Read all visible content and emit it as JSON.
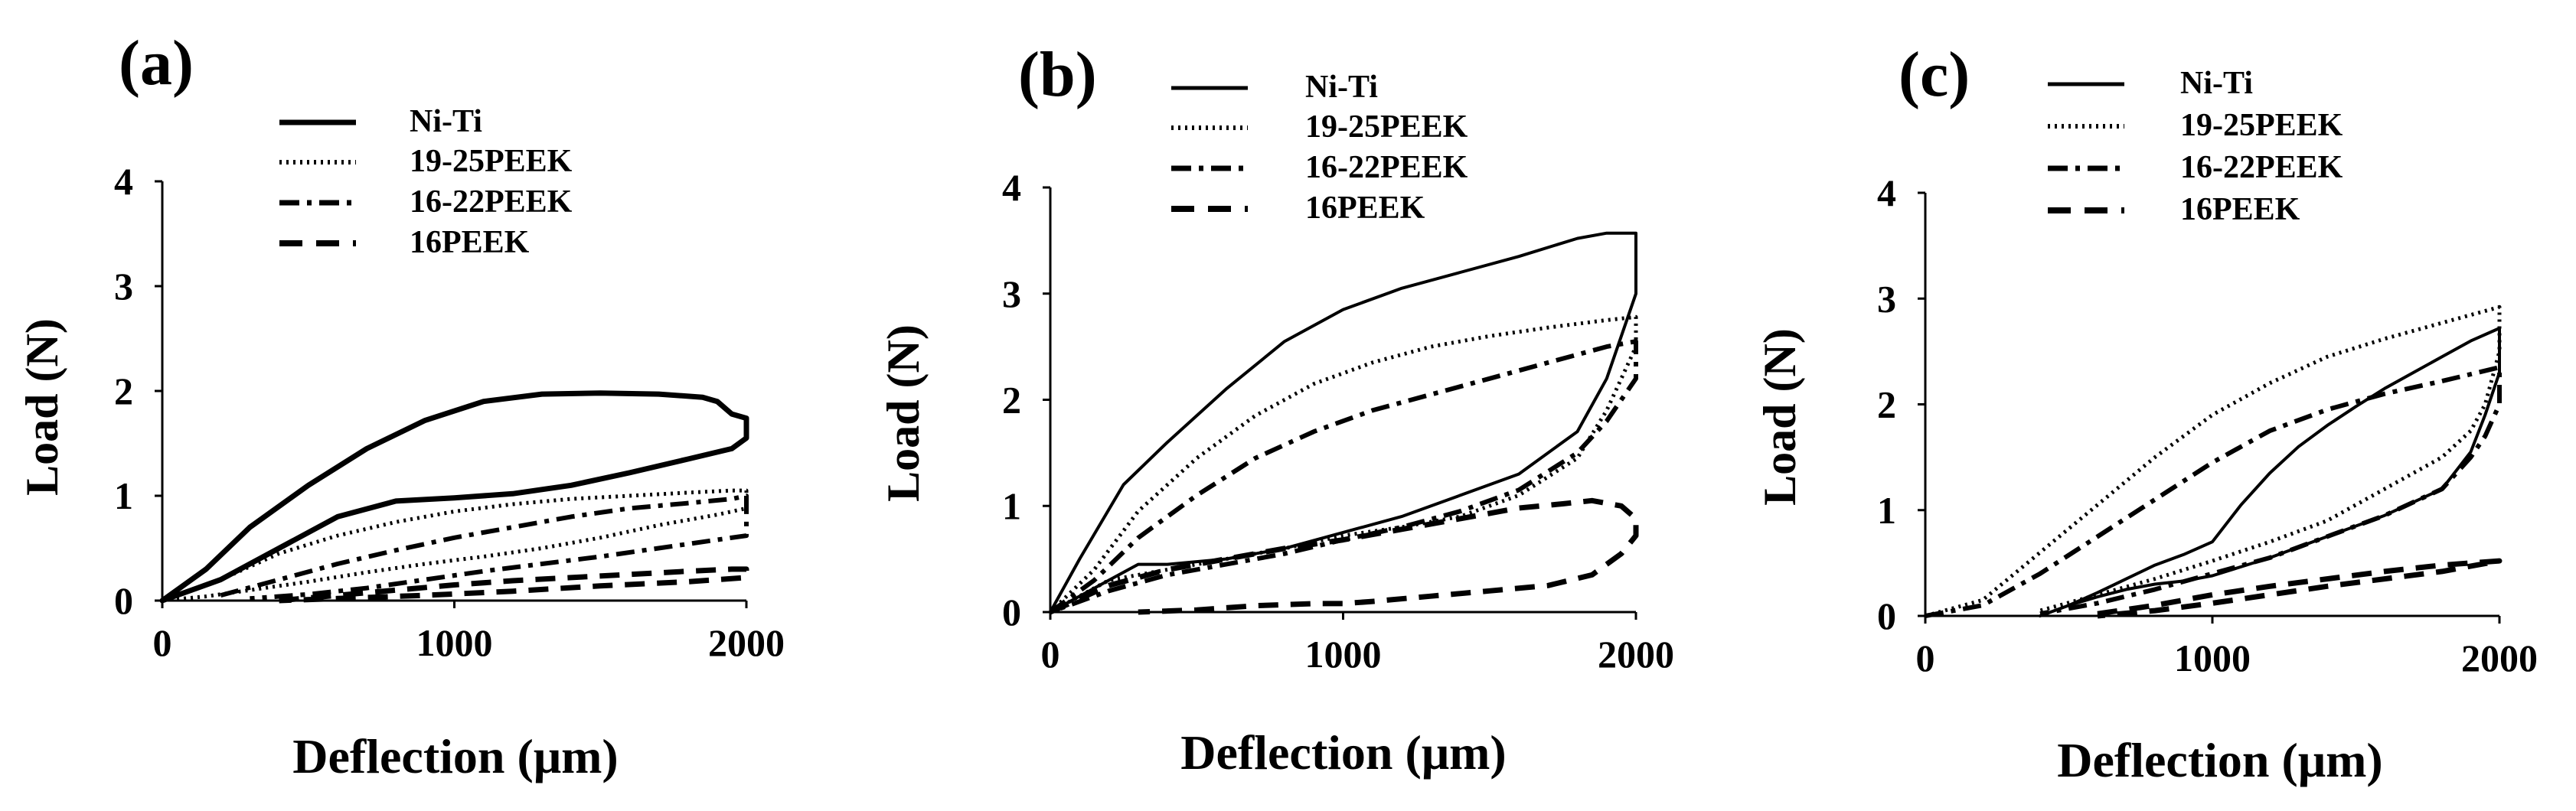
{
  "figure": {
    "description_free": true
  },
  "chart_data": [
    {
      "type": "line",
      "panel_label": "(a)",
      "xlabel": "Deflection   (μm)",
      "ylabel": "Load (N)",
      "xlim": [
        0,
        2000
      ],
      "ylim": [
        0,
        4
      ],
      "xticks": [
        "0",
        "1000",
        "2000"
      ],
      "yticks": [
        "0",
        "1",
        "2",
        "3",
        "4"
      ],
      "legend": [
        "Ni-Ti",
        "19-25PEEK",
        "16-22PEEK",
        "16PEEK"
      ],
      "series": [
        {
          "name": "Ni-Ti",
          "style": "solid-thick",
          "x": [
            0,
            150,
            300,
            500,
            700,
            900,
            1100,
            1300,
            1500,
            1700,
            1850,
            1900,
            1950,
            2000,
            2000,
            1950,
            1800,
            1600,
            1400,
            1200,
            1000,
            800,
            600,
            400,
            200,
            0
          ],
          "y": [
            0,
            0.3,
            0.7,
            1.1,
            1.45,
            1.72,
            1.9,
            1.97,
            1.98,
            1.97,
            1.94,
            1.9,
            1.78,
            1.74,
            1.55,
            1.45,
            1.35,
            1.22,
            1.1,
            1.02,
            0.98,
            0.95,
            0.8,
            0.5,
            0.2,
            0
          ]
        },
        {
          "name": "19-25PEEK",
          "style": "dotted",
          "x": [
            0,
            200,
            400,
            600,
            800,
            1000,
            1200,
            1400,
            1600,
            1800,
            1950,
            2000,
            2000,
            1900,
            1700,
            1500,
            1300,
            1100,
            900,
            700,
            500,
            300,
            150,
            0
          ],
          "y": [
            0,
            0.2,
            0.45,
            0.62,
            0.75,
            0.85,
            0.92,
            0.97,
            1.0,
            1.03,
            1.05,
            1.05,
            0.88,
            0.82,
            0.72,
            0.6,
            0.5,
            0.42,
            0.35,
            0.27,
            0.18,
            0.1,
            0.04,
            0
          ]
        },
        {
          "name": "16-22PEEK",
          "style": "dash-dot",
          "x": [
            200,
            400,
            600,
            800,
            1000,
            1200,
            1400,
            1600,
            1800,
            1950,
            2000,
            2000,
            1900,
            1700,
            1500,
            1300,
            1100,
            900,
            700,
            500,
            300
          ],
          "y": [
            0.05,
            0.2,
            0.35,
            0.48,
            0.6,
            0.7,
            0.8,
            0.88,
            0.93,
            0.97,
            1.0,
            0.62,
            0.58,
            0.5,
            0.42,
            0.35,
            0.28,
            0.2,
            0.12,
            0.06,
            0.02
          ]
        },
        {
          "name": "16PEEK",
          "style": "dashed",
          "x": [
            400,
            600,
            800,
            1000,
            1200,
            1400,
            1600,
            1800,
            1950,
            2000,
            2000,
            1800,
            1500,
            1200,
            900,
            600,
            400
          ],
          "y": [
            0.0,
            0.05,
            0.1,
            0.15,
            0.19,
            0.22,
            0.25,
            0.28,
            0.3,
            0.3,
            0.22,
            0.18,
            0.14,
            0.09,
            0.05,
            0.02,
            0.0
          ]
        }
      ]
    },
    {
      "type": "line",
      "panel_label": "(b)",
      "xlabel": "Deflection (μm)",
      "ylabel": "Load (N)",
      "xlim": [
        0,
        2000
      ],
      "ylim": [
        0,
        4
      ],
      "xticks": [
        "0",
        "1000",
        "2000"
      ],
      "yticks": [
        "0",
        "1",
        "2",
        "3",
        "4"
      ],
      "legend": [
        "Ni-Ti",
        "19-25PEEK",
        "16-22PEEK",
        "16PEEK"
      ],
      "series": [
        {
          "name": "Ni-Ti",
          "style": "solid",
          "x": [
            0,
            100,
            250,
            400,
            600,
            800,
            1000,
            1200,
            1400,
            1600,
            1800,
            1900,
            2000,
            2000,
            1950,
            1900,
            1800,
            1600,
            1400,
            1200,
            1000,
            800,
            600,
            400,
            300,
            200,
            100,
            0
          ],
          "y": [
            0,
            0.5,
            1.2,
            1.6,
            2.1,
            2.55,
            2.85,
            3.05,
            3.2,
            3.35,
            3.52,
            3.57,
            3.57,
            3.0,
            2.6,
            2.2,
            1.7,
            1.3,
            1.1,
            0.9,
            0.75,
            0.6,
            0.5,
            0.45,
            0.45,
            0.3,
            0.15,
            0
          ]
        },
        {
          "name": "19-25PEEK",
          "style": "dotted",
          "x": [
            0,
            150,
            300,
            500,
            700,
            900,
            1100,
            1300,
            1500,
            1700,
            1900,
            2000,
            2000,
            1950,
            1900,
            1800,
            1600,
            1400,
            1200,
            1000,
            800,
            600,
            400,
            200,
            0
          ],
          "y": [
            0,
            0.4,
            0.95,
            1.45,
            1.85,
            2.15,
            2.35,
            2.5,
            2.6,
            2.68,
            2.75,
            2.78,
            2.5,
            2.2,
            1.9,
            1.45,
            1.1,
            0.9,
            0.8,
            0.72,
            0.6,
            0.5,
            0.4,
            0.3,
            0
          ]
        },
        {
          "name": "16-22PEEK",
          "style": "dash-dot",
          "x": [
            0,
            150,
            300,
            500,
            700,
            900,
            1100,
            1300,
            1500,
            1700,
            1900,
            2000,
            2000,
            1950,
            1900,
            1800,
            1600,
            1400,
            1200,
            1000,
            800,
            600,
            400,
            200,
            0
          ],
          "y": [
            0,
            0.3,
            0.7,
            1.1,
            1.45,
            1.7,
            1.9,
            2.05,
            2.2,
            2.35,
            2.5,
            2.55,
            2.2,
            2.0,
            1.8,
            1.5,
            1.15,
            0.95,
            0.8,
            0.68,
            0.55,
            0.45,
            0.35,
            0.2,
            0
          ]
        },
        {
          "name": "16PEEK",
          "style": "dashed",
          "x": [
            0,
            200,
            400,
            600,
            800,
            1000,
            1200,
            1400,
            1600,
            1750,
            1850,
            1950,
            2000,
            2000,
            1950,
            1850,
            1700,
            1500,
            1300,
            1100,
            1000,
            900,
            700,
            500,
            300
          ],
          "y": [
            0,
            0.25,
            0.4,
            0.5,
            0.6,
            0.68,
            0.78,
            0.88,
            0.98,
            1.02,
            1.05,
            1.0,
            0.88,
            0.72,
            0.55,
            0.35,
            0.25,
            0.2,
            0.15,
            0.1,
            0.08,
            0.08,
            0.06,
            0.02,
            0.0
          ]
        }
      ]
    },
    {
      "type": "line",
      "panel_label": "(c)",
      "xlabel": "Deflection (μm)",
      "ylabel": "Load (N)",
      "xlim": [
        0,
        2000
      ],
      "ylim": [
        0,
        4
      ],
      "xticks": [
        "0",
        "1000",
        "2000"
      ],
      "yticks": [
        "0",
        "1",
        "2",
        "3",
        "4"
      ],
      "legend": [
        "Ni-Ti",
        "19-25PEEK",
        "16-22PEEK",
        "16PEEK"
      ],
      "series": [
        {
          "name": "Ni-Ti",
          "style": "solid",
          "x": [
            400,
            500,
            600,
            700,
            800,
            900,
            1000,
            1100,
            1200,
            1300,
            1400,
            1500,
            1600,
            1700,
            1800,
            1900,
            2000,
            2000,
            1950,
            1900,
            1800,
            1600,
            1400,
            1200,
            1000,
            900,
            800,
            700,
            600,
            500,
            400
          ],
          "y": [
            0,
            0.1,
            0.22,
            0.35,
            0.48,
            0.58,
            0.7,
            1.05,
            1.35,
            1.6,
            1.8,
            1.98,
            2.15,
            2.3,
            2.45,
            2.6,
            2.72,
            2.3,
            1.9,
            1.55,
            1.2,
            0.95,
            0.75,
            0.55,
            0.38,
            0.33,
            0.3,
            0.25,
            0.18,
            0.1,
            0
          ]
        },
        {
          "name": "19-25PEEK",
          "style": "dotted",
          "x": [
            0,
            200,
            400,
            600,
            800,
            1000,
            1200,
            1400,
            1600,
            1800,
            2000,
            2000,
            1950,
            1900,
            1800,
            1600,
            1400,
            1200,
            1000,
            800,
            600,
            400
          ],
          "y": [
            0,
            0.15,
            0.6,
            1.05,
            1.5,
            1.9,
            2.2,
            2.45,
            2.62,
            2.77,
            2.92,
            2.5,
            2.0,
            1.75,
            1.5,
            1.2,
            0.9,
            0.7,
            0.52,
            0.35,
            0.2,
            0.05
          ]
        },
        {
          "name": "16-22PEEK",
          "style": "dash-dot",
          "x": [
            0,
            200,
            400,
            600,
            800,
            1000,
            1200,
            1400,
            1600,
            1800,
            2000,
            2000,
            1950,
            1900,
            1800,
            1600,
            1400,
            1200,
            1000,
            800,
            600,
            400
          ],
          "y": [
            0,
            0.1,
            0.4,
            0.75,
            1.1,
            1.45,
            1.75,
            1.95,
            2.1,
            2.22,
            2.35,
            2.0,
            1.7,
            1.5,
            1.2,
            0.95,
            0.75,
            0.55,
            0.4,
            0.25,
            0.12,
            0.02
          ]
        },
        {
          "name": "16PEEK",
          "style": "dashed",
          "x": [
            600,
            800,
            1000,
            1200,
            1400,
            1600,
            1800,
            2000,
            2000,
            1800,
            1600,
            1400,
            1200,
            1000,
            800,
            600
          ],
          "y": [
            0.02,
            0.1,
            0.2,
            0.28,
            0.35,
            0.42,
            0.48,
            0.52,
            0.52,
            0.42,
            0.35,
            0.28,
            0.2,
            0.12,
            0.05,
            0.0
          ]
        }
      ]
    }
  ]
}
